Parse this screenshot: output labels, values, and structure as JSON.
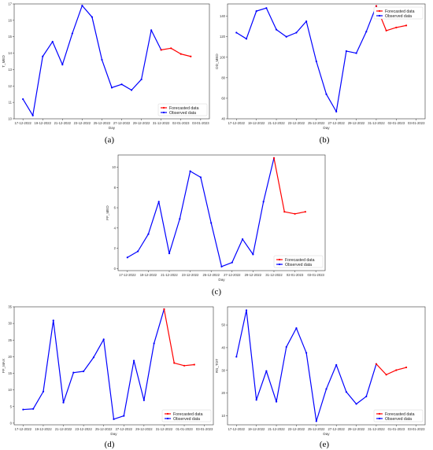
{
  "figure": {
    "captions": [
      "(a)",
      "(b)",
      "(c)",
      "(d)",
      "(e)"
    ]
  },
  "chart_data": [
    {
      "type": "line",
      "xlabel": "Day",
      "ylabel": "T_MED",
      "ylim": [
        10,
        17
      ],
      "yticks": [
        10,
        11,
        12,
        13,
        14,
        15,
        16,
        17
      ],
      "xticks": [
        {
          "i": 0,
          "label": "17-12-2022"
        },
        {
          "i": 2,
          "label": "19-12-2022"
        },
        {
          "i": 4,
          "label": "21-12-2022"
        },
        {
          "i": 6,
          "label": "23-12-2022"
        },
        {
          "i": 8,
          "label": "25-12-2022"
        },
        {
          "i": 10,
          "label": "27-12-2022"
        },
        {
          "i": 12,
          "label": "29-12-2022"
        },
        {
          "i": 14,
          "label": "31-12-2022"
        },
        {
          "i": 16,
          "label": "02-01-2023"
        },
        {
          "i": 18,
          "label": "03-01-2023"
        }
      ],
      "n_points": 19,
      "grid": false,
      "legend_position": "lower-right",
      "series": [
        {
          "name": "Observed data",
          "color": "#0000ff",
          "start": 0,
          "values": [
            11.2,
            10.2,
            13.8,
            14.7,
            13.3,
            15.2,
            16.9,
            16.2,
            13.6,
            11.9,
            12.1,
            11.75,
            12.4,
            15.4,
            14.2
          ]
        },
        {
          "name": "Forecasted data",
          "color": "#ff0000",
          "start": 14,
          "values": [
            14.2,
            14.3,
            13.95,
            13.8
          ]
        }
      ]
    },
    {
      "type": "line",
      "xlabel": "Day",
      "ylabel": "DD_MED",
      "ylim": [
        40,
        152
      ],
      "yticks": [
        40,
        60,
        80,
        100,
        120,
        140
      ],
      "xticks": [
        {
          "i": 0,
          "label": "17-12-2022"
        },
        {
          "i": 2,
          "label": "19-12-2022"
        },
        {
          "i": 4,
          "label": "21-12-2022"
        },
        {
          "i": 6,
          "label": "23-12-2022"
        },
        {
          "i": 8,
          "label": "25-12-2022"
        },
        {
          "i": 10,
          "label": "27-12-2022"
        },
        {
          "i": 12,
          "label": "29-12-2022"
        },
        {
          "i": 14,
          "label": "31-12-2022"
        },
        {
          "i": 16,
          "label": "02-01-2023"
        },
        {
          "i": 18,
          "label": "03-01-2023"
        }
      ],
      "n_points": 19,
      "grid": false,
      "legend_position": "top-right",
      "series": [
        {
          "name": "Observed data",
          "color": "#0000ff",
          "start": 0,
          "values": [
            124,
            118,
            145,
            148,
            127,
            120,
            124,
            135,
            96,
            64,
            47,
            106,
            104,
            125,
            150
          ]
        },
        {
          "name": "Forecasted data",
          "color": "#ff0000",
          "start": 14,
          "values": [
            150,
            126,
            129,
            131
          ]
        }
      ]
    },
    {
      "type": "line",
      "xlabel": "Day",
      "ylabel": "FF_MED",
      "ylim": [
        -0.2,
        11.2
      ],
      "yticks": [
        0,
        2,
        4,
        6,
        8,
        10
      ],
      "xticks": [
        {
          "i": 0,
          "label": "17-12-2022"
        },
        {
          "i": 2,
          "label": "19-12-2022"
        },
        {
          "i": 4,
          "label": "21-12-2022"
        },
        {
          "i": 6,
          "label": "23-12-2022"
        },
        {
          "i": 8,
          "label": "25-12-2022"
        },
        {
          "i": 10,
          "label": "27-12-2022"
        },
        {
          "i": 12,
          "label": "29-12-2022"
        },
        {
          "i": 14,
          "label": "31-12-2022"
        },
        {
          "i": 16,
          "label": "02-01-2023"
        },
        {
          "i": 18,
          "label": "03-01-2023"
        }
      ],
      "n_points": 19,
      "grid": false,
      "legend_position": "lower-right",
      "series": [
        {
          "name": "Observed data",
          "color": "#0000ff",
          "start": 0,
          "values": [
            1.1,
            1.7,
            3.4,
            6.6,
            1.5,
            4.9,
            9.6,
            9.0,
            4.5,
            0.2,
            0.6,
            2.9,
            1.4,
            6.6,
            10.9
          ]
        },
        {
          "name": "Forecasted data",
          "color": "#ff0000",
          "start": 14,
          "values": [
            10.9,
            5.6,
            5.4,
            5.6
          ]
        }
      ]
    },
    {
      "type": "line",
      "xlabel": "Day",
      "ylabel": "FF_MAX",
      "ylim": [
        -0.5,
        35
      ],
      "yticks": [
        0,
        5,
        10,
        15,
        20,
        25,
        30,
        35
      ],
      "xticks": [
        {
          "i": 0,
          "label": "17-12-2022"
        },
        {
          "i": 2,
          "label": "19-12-2022"
        },
        {
          "i": 4,
          "label": "21-12-2022"
        },
        {
          "i": 6,
          "label": "23-12-2022"
        },
        {
          "i": 8,
          "label": "25-12-2022"
        },
        {
          "i": 10,
          "label": "27-12-2022"
        },
        {
          "i": 12,
          "label": "29-12-2022"
        },
        {
          "i": 14,
          "label": "31-12-2022"
        },
        {
          "i": 16,
          "label": "01-01-2023"
        },
        {
          "i": 18,
          "label": "03-01-2023"
        }
      ],
      "n_points": 19,
      "grid": false,
      "legend_position": "lower-right",
      "series": [
        {
          "name": "Observed data",
          "color": "#0000ff",
          "start": 0,
          "values": [
            4.1,
            4.3,
            9.5,
            30.9,
            6.2,
            15.2,
            15.6,
            19.8,
            25.2,
            1.2,
            2.2,
            18.8,
            6.9,
            24.0,
            34.3
          ]
        },
        {
          "name": "Forecasted data",
          "color": "#ff0000",
          "start": 14,
          "values": [
            34.3,
            18.1,
            17.3,
            17.6
          ]
        }
      ]
    },
    {
      "type": "line",
      "xlabel": "Day",
      "ylabel": "RS_TOT",
      "ylim": [
        6,
        58
      ],
      "yticks": [
        10,
        20,
        30,
        40,
        50
      ],
      "xticks": [
        {
          "i": 0,
          "label": "17-12-2022"
        },
        {
          "i": 2,
          "label": "19-12-2022"
        },
        {
          "i": 4,
          "label": "21-12-2022"
        },
        {
          "i": 6,
          "label": "23-12-2022"
        },
        {
          "i": 8,
          "label": "25-12-2022"
        },
        {
          "i": 10,
          "label": "27-12-2022"
        },
        {
          "i": 12,
          "label": "29-12-2022"
        },
        {
          "i": 14,
          "label": "31-12-2022"
        },
        {
          "i": 16,
          "label": "01-01-2023"
        },
        {
          "i": 18,
          "label": "03-01-2023"
        }
      ],
      "n_points": 19,
      "grid": false,
      "legend_position": "lower-right",
      "series": [
        {
          "name": "Observed data",
          "color": "#0000ff",
          "start": 0,
          "values": [
            36,
            56.5,
            17,
            29.7,
            16.2,
            40.3,
            48.6,
            37.7,
            7.6,
            21.8,
            32.4,
            20.5,
            15.2,
            18.5,
            32.8
          ]
        },
        {
          "name": "Forecasted data",
          "color": "#ff0000",
          "start": 14,
          "values": [
            32.8,
            28.1,
            30.1,
            31.3
          ]
        }
      ]
    }
  ]
}
